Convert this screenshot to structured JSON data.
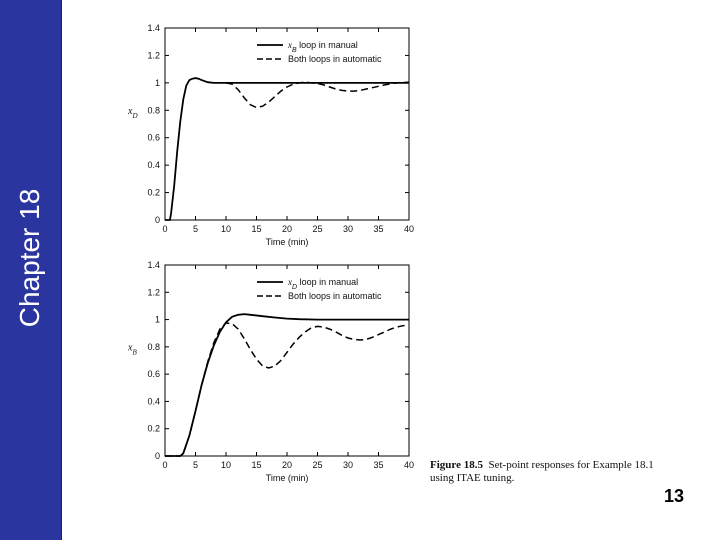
{
  "slide": {
    "sidebar_title": "Chapter 18",
    "page_number": "13",
    "caption_label": "Figure 18.5",
    "caption_text": "Set-point responses for Example 18.1 using ITAE tuning.",
    "colors": {
      "sidebar": "#2a35a0",
      "line": "#000000"
    }
  },
  "chart_data": [
    {
      "type": "line",
      "xlabel": "Time (min)",
      "ylabel": "xD",
      "xlim": [
        0,
        40
      ],
      "ylim": [
        0,
        1.4
      ],
      "xticks": [
        "0",
        "5",
        "10",
        "15",
        "20",
        "25",
        "30",
        "35",
        "40"
      ],
      "yticks": [
        "0",
        "0.2",
        "0.4",
        "0.6",
        "0.8",
        "1",
        "1.2",
        "1.4"
      ],
      "legend_position": "top-right",
      "series": [
        {
          "name": "xB loop in manual",
          "style": "solid",
          "x": [
            0,
            0.8,
            1,
            1.5,
            2,
            2.5,
            3,
            3.5,
            4,
            4.5,
            5,
            5.5,
            6,
            7,
            8,
            9,
            10,
            40
          ],
          "y": [
            0,
            0,
            0.05,
            0.25,
            0.5,
            0.72,
            0.88,
            0.98,
            1.02,
            1.03,
            1.035,
            1.03,
            1.02,
            1.005,
            1.0,
            1.0,
            1.0,
            1.0
          ]
        },
        {
          "name": "Both loops in automatic",
          "style": "dashed",
          "x": [
            10,
            11,
            12,
            13,
            14,
            15,
            16,
            17,
            18,
            19,
            20,
            21,
            22,
            23,
            24,
            25,
            26,
            27,
            28,
            29,
            30,
            31,
            32,
            33,
            34,
            35,
            36,
            37,
            38,
            39,
            40
          ],
          "y": [
            1.0,
            0.99,
            0.95,
            0.89,
            0.84,
            0.82,
            0.83,
            0.86,
            0.9,
            0.94,
            0.97,
            0.99,
            1.0,
            1.005,
            1.0,
            0.995,
            0.985,
            0.97,
            0.955,
            0.945,
            0.94,
            0.94,
            0.945,
            0.955,
            0.965,
            0.975,
            0.985,
            0.993,
            1.0,
            1.003,
            1.005
          ]
        }
      ]
    },
    {
      "type": "line",
      "xlabel": "Time (min)",
      "ylabel": "xB",
      "xlim": [
        0,
        40
      ],
      "ylim": [
        0,
        1.4
      ],
      "xticks": [
        "0",
        "5",
        "10",
        "15",
        "20",
        "25",
        "30",
        "35",
        "40"
      ],
      "yticks": [
        "0",
        "0.2",
        "0.4",
        "0.6",
        "0.8",
        "1",
        "1.2",
        "1.4"
      ],
      "legend_position": "top-right",
      "series": [
        {
          "name": "xD loop in manual",
          "style": "solid",
          "x": [
            0,
            2.5,
            3,
            4,
            5,
            6,
            7,
            8,
            9,
            10,
            11,
            12,
            13,
            14,
            16,
            18,
            20,
            22,
            25,
            30,
            40
          ],
          "y": [
            0,
            0,
            0.02,
            0.15,
            0.33,
            0.52,
            0.68,
            0.81,
            0.91,
            0.98,
            1.02,
            1.035,
            1.04,
            1.035,
            1.025,
            1.015,
            1.007,
            1.003,
            1.0,
            1.0,
            1.0
          ]
        },
        {
          "name": "Both loops in automatic",
          "style": "dashed",
          "x": [
            0,
            2.5,
            3,
            4,
            5,
            6,
            7,
            8,
            9,
            10,
            11,
            12,
            13,
            14,
            15,
            16,
            17,
            18,
            19,
            20,
            21,
            22,
            23,
            24,
            25,
            26,
            27,
            28,
            29,
            30,
            31,
            32,
            33,
            34,
            35,
            36,
            37,
            38,
            39,
            40
          ],
          "y": [
            0,
            0,
            0.02,
            0.15,
            0.33,
            0.52,
            0.69,
            0.83,
            0.93,
            0.975,
            0.97,
            0.93,
            0.86,
            0.78,
            0.71,
            0.66,
            0.645,
            0.66,
            0.7,
            0.76,
            0.82,
            0.87,
            0.91,
            0.94,
            0.95,
            0.945,
            0.93,
            0.91,
            0.885,
            0.865,
            0.855,
            0.85,
            0.855,
            0.87,
            0.89,
            0.91,
            0.93,
            0.945,
            0.955,
            0.96
          ]
        }
      ]
    }
  ]
}
